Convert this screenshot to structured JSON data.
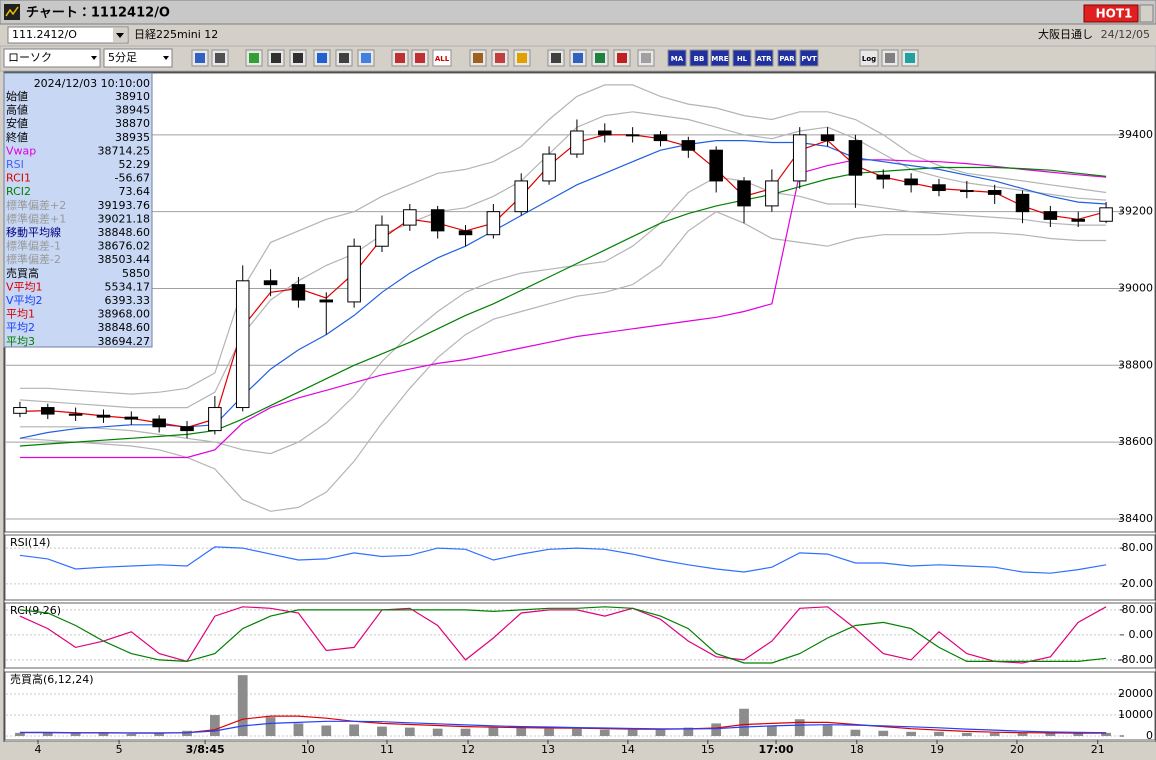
{
  "window": {
    "title": "チャート：1112412/O",
    "hot_button": "HOT1"
  },
  "header": {
    "symbol_code": "111.2412/O",
    "symbol_name": "日経225mini 12",
    "session": "大阪日通し",
    "date": "24/12/05"
  },
  "toolbar": {
    "chart_type": "ローソク",
    "interval": "5分足",
    "buttons": [
      "ALL",
      "MA",
      "BB",
      "MRE",
      "HL",
      "ATR",
      "PAR",
      "PVT",
      "Log"
    ]
  },
  "info_panel": {
    "datetime": "2024/12/03 10:10:00",
    "rows": [
      {
        "label": "始値",
        "value": "38910",
        "color": "#000000"
      },
      {
        "label": "高値",
        "value": "38945",
        "color": "#000000"
      },
      {
        "label": "安値",
        "value": "38870",
        "color": "#000000"
      },
      {
        "label": "終値",
        "value": "38935",
        "color": "#000000"
      },
      {
        "label": "Vwap",
        "value": "38714.25",
        "color": "#e000e0"
      },
      {
        "label": "RSI",
        "value": "52.29",
        "color": "#4060ff"
      },
      {
        "label": "RCI1",
        "value": "-56.67",
        "color": "#e00000"
      },
      {
        "label": "RCI2",
        "value": "73.64",
        "color": "#008000"
      },
      {
        "label": "標準偏差+2",
        "value": "39193.76",
        "color": "#999999"
      },
      {
        "label": "標準偏差+1",
        "value": "39021.18",
        "color": "#999999"
      },
      {
        "label": "移動平均線",
        "value": "38848.60",
        "color": "#000080"
      },
      {
        "label": "標準偏差-1",
        "value": "38676.02",
        "color": "#999999"
      },
      {
        "label": "標準偏差-2",
        "value": "38503.44",
        "color": "#999999"
      },
      {
        "label": "売買高",
        "value": "5850",
        "color": "#000000"
      },
      {
        "label": "V平均1",
        "value": "5534.17",
        "color": "#e00000"
      },
      {
        "label": "V平均2",
        "value": "6393.33",
        "color": "#2040ff"
      },
      {
        "label": "平均1",
        "value": "38968.00",
        "color": "#e00000"
      },
      {
        "label": "平均2",
        "value": "38848.60",
        "color": "#2040ff"
      },
      {
        "label": "平均3",
        "value": "38694.27",
        "color": "#008000"
      }
    ]
  },
  "chart_data": [
    {
      "type": "candlestick",
      "xlim": [
        0,
        40
      ],
      "xticks": [
        {
          "value": 1.15,
          "label": "4"
        },
        {
          "value": 4.06,
          "label": "5"
        },
        {
          "value": 7.15,
          "label": "3/8:45"
        },
        {
          "value": 10.84,
          "label": "10"
        },
        {
          "value": 13.68,
          "label": "11"
        },
        {
          "value": 16.59,
          "label": "12"
        },
        {
          "value": 19.46,
          "label": "13"
        },
        {
          "value": 22.33,
          "label": "14"
        },
        {
          "value": 25.2,
          "label": "15"
        },
        {
          "value": 27.65,
          "label": "17:00"
        },
        {
          "value": 30.55,
          "label": "18"
        },
        {
          "value": 33.43,
          "label": "19"
        },
        {
          "value": 36.3,
          "label": "20"
        },
        {
          "value": 39.2,
          "label": "21"
        }
      ],
      "ylim": [
        38366,
        39561
      ],
      "yticks": [
        38400,
        38600,
        38800,
        39000,
        39200,
        39400
      ],
      "grid": true,
      "open": [
        38675,
        38690,
        38673,
        38670,
        38665,
        38660,
        38640,
        38630,
        38690,
        39020,
        39010,
        38970,
        38965,
        39110,
        39165,
        39205,
        39150,
        39140,
        39200,
        39280,
        39350,
        39410,
        39400,
        39400,
        39385,
        39360,
        39280,
        39215,
        39280,
        39400,
        39385,
        39295,
        39285,
        39270,
        39255,
        39255,
        39245,
        39200,
        39180,
        39175
      ],
      "high": [
        38705,
        38700,
        38690,
        38685,
        38680,
        38670,
        38655,
        38720,
        39060,
        39050,
        39030,
        38990,
        39130,
        39190,
        39220,
        39215,
        39165,
        39220,
        39300,
        39370,
        39440,
        39430,
        39420,
        39410,
        39395,
        39370,
        39290,
        39310,
        39420,
        39420,
        39400,
        39310,
        39300,
        39285,
        39280,
        39270,
        39255,
        39215,
        39200,
        39225
      ],
      "low": [
        38665,
        38660,
        38655,
        38650,
        38645,
        38625,
        38610,
        38620,
        38680,
        38980,
        38950,
        38880,
        38950,
        39095,
        39150,
        39130,
        39110,
        39130,
        39190,
        39270,
        39340,
        39380,
        39380,
        39370,
        39340,
        39250,
        39170,
        39200,
        39260,
        39370,
        39210,
        39260,
        39250,
        39240,
        39235,
        39220,
        39170,
        39160,
        39160,
        39170
      ],
      "close": [
        38690,
        38673,
        38670,
        38665,
        38660,
        38640,
        38630,
        38690,
        39020,
        39010,
        38970,
        38965,
        39110,
        39165,
        39205,
        39150,
        39140,
        39200,
        39280,
        39350,
        39410,
        39400,
        39400,
        39385,
        39360,
        39280,
        39215,
        39280,
        39400,
        39385,
        39295,
        39285,
        39270,
        39255,
        39255,
        39245,
        39200,
        39180,
        39175,
        39210
      ],
      "series": [
        {
          "color": "#b4b4b4",
          "values": [
            38740,
            38740,
            38735,
            38730,
            38725,
            38730,
            38740,
            38780,
            39000,
            39120,
            39150,
            39180,
            39200,
            39240,
            39270,
            39300,
            39310,
            39330,
            39370,
            39440,
            39500,
            39530,
            39530,
            39500,
            39480,
            39470,
            39450,
            39440,
            39460,
            39460,
            39440,
            39400,
            39350,
            39320,
            39300,
            39290,
            39280,
            39270,
            39260,
            39250
          ]
        },
        {
          "color": "#b4b4b4",
          "values": [
            38710,
            38705,
            38700,
            38695,
            38690,
            38690,
            38690,
            38730,
            38880,
            38970,
            39020,
            39060,
            39090,
            39140,
            39170,
            39200,
            39210,
            39240,
            39280,
            39350,
            39420,
            39450,
            39460,
            39450,
            39440,
            39420,
            39400,
            39390,
            39410,
            39420,
            39390,
            39350,
            39310,
            39290,
            39275,
            39265,
            39255,
            39245,
            39235,
            39230
          ]
        },
        {
          "color": "#b4b4b4",
          "values": [
            38640,
            38640,
            38640,
            38635,
            38630,
            38620,
            38610,
            38600,
            38580,
            38570,
            38600,
            38650,
            38720,
            38810,
            38880,
            38940,
            38990,
            39020,
            39040,
            39050,
            39060,
            39070,
            39110,
            39170,
            39250,
            39290,
            39280,
            39250,
            39240,
            39220,
            39220,
            39210,
            39200,
            39195,
            39190,
            39185,
            39180,
            39170,
            39165,
            39165
          ]
        },
        {
          "color": "#b4b4b4",
          "values": [
            38610,
            38605,
            38600,
            38595,
            38590,
            38580,
            38560,
            38530,
            38450,
            38420,
            38430,
            38470,
            38550,
            38650,
            38740,
            38820,
            38880,
            38920,
            38940,
            38960,
            38980,
            38990,
            39010,
            39060,
            39150,
            39200,
            39170,
            39130,
            39120,
            39110,
            39130,
            39140,
            39140,
            39140,
            39145,
            39145,
            39140,
            39130,
            39125,
            39125
          ]
        },
        {
          "color": "#e000e0",
          "values": [
            38560,
            38560,
            38560,
            38560,
            38560,
            38560,
            38560,
            38580,
            38650,
            38690,
            38715,
            38735,
            38755,
            38775,
            38790,
            38805,
            38815,
            38830,
            38845,
            38860,
            38875,
            38885,
            38895,
            38905,
            38915,
            38925,
            38940,
            38960,
            39300,
            39320,
            39335,
            39335,
            39332,
            39330,
            39325,
            39318,
            39310,
            39303,
            39296,
            39290
          ]
        },
        {
          "color": "#008000",
          "values": [
            38590,
            38595,
            38600,
            38605,
            38610,
            38615,
            38620,
            38630,
            38660,
            38695,
            38730,
            38765,
            38800,
            38830,
            38860,
            38895,
            38930,
            38960,
            38995,
            39030,
            39065,
            39100,
            39135,
            39170,
            39195,
            39215,
            39230,
            39245,
            39265,
            39285,
            39300,
            39305,
            39310,
            39315,
            39315,
            39315,
            39312,
            39308,
            39300,
            39292
          ]
        },
        {
          "color": "#2060e0",
          "values": [
            38610,
            38625,
            38635,
            38640,
            38645,
            38645,
            38640,
            38645,
            38720,
            38790,
            38840,
            38880,
            38930,
            38990,
            39040,
            39080,
            39110,
            39150,
            39190,
            39230,
            39270,
            39300,
            39330,
            39360,
            39375,
            39385,
            39385,
            39380,
            39380,
            39370,
            39340,
            39330,
            39320,
            39310,
            39295,
            39280,
            39260,
            39240,
            39225,
            39220
          ]
        },
        {
          "color": "#e00000",
          "values": [
            38680,
            38682,
            38676,
            38668,
            38662,
            38650,
            38638,
            38660,
            38900,
            38990,
            39000,
            38975,
            39040,
            39130,
            39180,
            39170,
            39150,
            39170,
            39240,
            39320,
            39380,
            39400,
            39400,
            39390,
            39370,
            39310,
            39240,
            39260,
            39360,
            39385,
            39320,
            39290,
            39275,
            39260,
            39255,
            39250,
            39215,
            39190,
            39180,
            39200
          ]
        }
      ]
    },
    {
      "type": "line",
      "title": "RSI(14)",
      "ylim": [
        -7,
        102
      ],
      "yticks": [
        {
          "value": 20,
          "label": "20.00"
        },
        {
          "value": 80,
          "label": "80.00"
        }
      ],
      "grid": true,
      "series": [
        {
          "color": "#3070ff",
          "values": [
            68,
            62,
            45,
            48,
            50,
            52,
            50,
            82,
            80,
            70,
            60,
            62,
            72,
            66,
            68,
            80,
            78,
            60,
            70,
            78,
            80,
            78,
            70,
            60,
            52,
            45,
            40,
            48,
            72,
            70,
            55,
            55,
            50,
            52,
            50,
            48,
            40,
            38,
            44,
            52
          ]
        }
      ]
    },
    {
      "type": "line",
      "title": "RCI(9,26)",
      "ylim": [
        -106,
        102
      ],
      "yticks": [
        {
          "value": -80,
          "label": "-80.00"
        },
        {
          "value": 0,
          "label": "0.00"
        },
        {
          "value": 80,
          "label": "80.00"
        }
      ],
      "grid": true,
      "series": [
        {
          "color": "#e0007a",
          "values": [
            60,
            20,
            -40,
            -20,
            10,
            -60,
            -85,
            60,
            90,
            85,
            70,
            -50,
            -40,
            80,
            85,
            30,
            -80,
            -10,
            70,
            80,
            80,
            60,
            85,
            50,
            -20,
            -70,
            -80,
            -20,
            85,
            90,
            20,
            -60,
            -80,
            10,
            -60,
            -85,
            -90,
            -70,
            40,
            90
          ]
        },
        {
          "color": "#008000",
          "values": [
            80,
            70,
            30,
            -20,
            -60,
            -80,
            -85,
            -60,
            20,
            60,
            80,
            80,
            80,
            80,
            80,
            80,
            80,
            75,
            80,
            85,
            85,
            90,
            85,
            60,
            20,
            -60,
            -90,
            -90,
            -60,
            -10,
            30,
            40,
            20,
            -40,
            -85,
            -85,
            -85,
            -85,
            -85,
            -75
          ]
        }
      ]
    },
    {
      "type": "bar",
      "title": "売買高(6,12,24)",
      "ylim": [
        -1900,
        30500
      ],
      "yticks": [
        0,
        10000,
        20000
      ],
      "grid": true,
      "color": "#8c8c8c",
      "values": [
        1500,
        1800,
        1500,
        1200,
        1000,
        1500,
        2500,
        10000,
        29000,
        9000,
        6000,
        5000,
        5500,
        4500,
        4000,
        3500,
        3500,
        4000,
        4000,
        3500,
        3500,
        3000,
        3000,
        3000,
        4000,
        6000,
        13000,
        5000,
        8000,
        5000,
        3000,
        2500,
        2000,
        2000,
        1500,
        1500,
        1500,
        1500,
        1200,
        1500
      ],
      "series": [
        {
          "color": "#e00000",
          "values": [
            1600,
            1600,
            1500,
            1500,
            1400,
            1400,
            1600,
            3000,
            8000,
            9500,
            9500,
            8500,
            7000,
            6000,
            5500,
            5000,
            4500,
            4200,
            4000,
            3800,
            3700,
            3500,
            3300,
            3200,
            3400,
            3800,
            5500,
            6000,
            6500,
            6500,
            5500,
            4500,
            3500,
            2800,
            2200,
            1800,
            1600,
            1500,
            1400,
            1400
          ]
        },
        {
          "color": "#2040ff",
          "values": [
            1700,
            1700,
            1600,
            1600,
            1500,
            1500,
            1600,
            2400,
            4800,
            6000,
            6500,
            7000,
            7000,
            6800,
            6300,
            5800,
            5300,
            4800,
            4500,
            4300,
            4000,
            3800,
            3600,
            3400,
            3400,
            3500,
            4300,
            4800,
            5200,
            5400,
            5200,
            4800,
            4400,
            3900,
            3300,
            2800,
            2300,
            1900,
            1700,
            1600
          ]
        }
      ]
    }
  ]
}
